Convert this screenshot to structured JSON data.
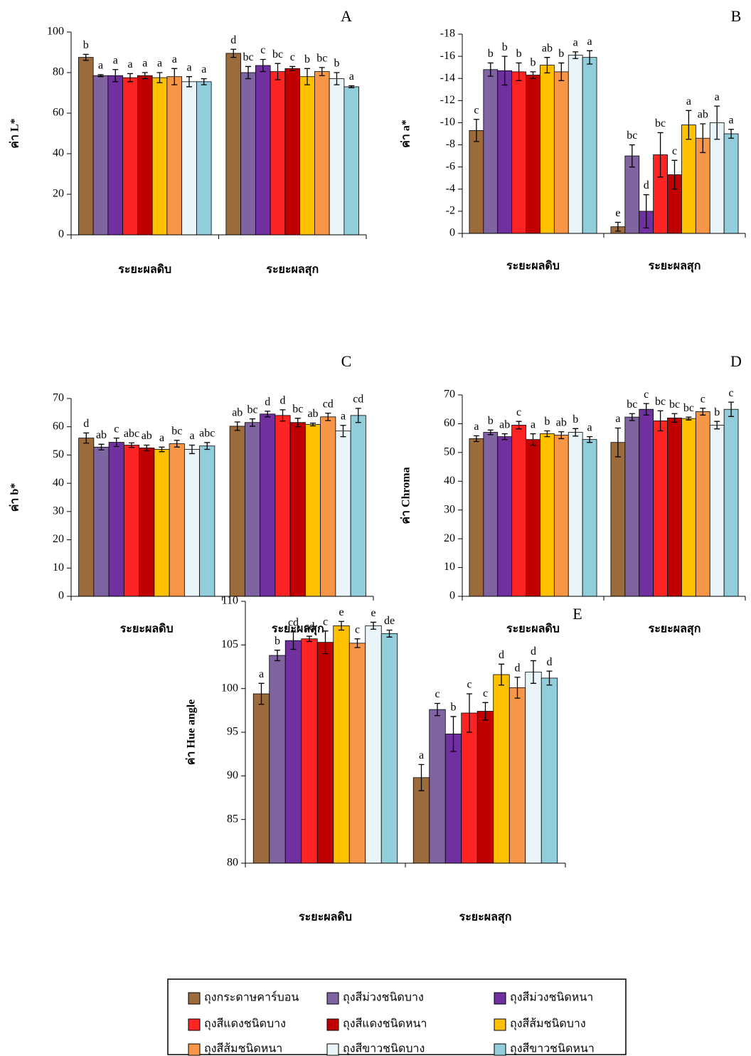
{
  "chart_data": [
    {
      "type": "bar",
      "panel": "A",
      "y_label": "ค่า L*",
      "categories": [
        "ระยะผลดิบ",
        "ระยะผลสุก"
      ],
      "ylim": [
        0,
        100
      ],
      "yticks": [
        0,
        20,
        40,
        60,
        80,
        100
      ],
      "series": [
        {
          "values": [
            87.5,
            89.5
          ],
          "errors": [
            1.5,
            2
          ],
          "letters": [
            "b",
            "d"
          ]
        },
        {
          "values": [
            78.5,
            80
          ],
          "errors": [
            0.5,
            3
          ],
          "letters": [
            "a",
            "bc"
          ]
        },
        {
          "values": [
            78.5,
            83.5
          ],
          "errors": [
            3,
            3
          ],
          "letters": [
            "a",
            "c"
          ]
        },
        {
          "values": [
            77.5,
            80.5
          ],
          "errors": [
            2,
            4
          ],
          "letters": [
            "a",
            "bc"
          ]
        },
        {
          "values": [
            78.5,
            82
          ],
          "errors": [
            1.5,
            1
          ],
          "letters": [
            "a",
            "c"
          ]
        },
        {
          "values": [
            77.5,
            78
          ],
          "errors": [
            2.5,
            4
          ],
          "letters": [
            "a",
            "b"
          ]
        },
        {
          "values": [
            78,
            80.5
          ],
          "errors": [
            4,
            2
          ],
          "letters": [
            "a",
            "bc"
          ]
        },
        {
          "values": [
            75.5,
            77
          ],
          "errors": [
            2.5,
            3
          ],
          "letters": [
            "a",
            "b"
          ]
        },
        {
          "values": [
            75.5,
            73
          ],
          "errors": [
            1.5,
            0.5
          ],
          "letters": [
            "a",
            "a"
          ]
        }
      ]
    },
    {
      "type": "bar",
      "panel": "B",
      "y_label": "ค่า a*",
      "categories": [
        "ระยะผลดิบ",
        "ระยะผลสุก"
      ],
      "ylim": [
        0,
        -18
      ],
      "yticks": [
        0,
        -2,
        -4,
        -6,
        -8,
        -10,
        -12,
        -14,
        -16,
        -18
      ],
      "series": [
        {
          "values": [
            -9.3,
            -0.6
          ],
          "errors": [
            1,
            0.4
          ],
          "letters": [
            "c",
            "e"
          ]
        },
        {
          "values": [
            -14.8,
            -7
          ],
          "errors": [
            0.6,
            1
          ],
          "letters": [
            "b",
            "bc"
          ]
        },
        {
          "values": [
            -14.7,
            -2
          ],
          "errors": [
            1.3,
            1.5
          ],
          "letters": [
            "b",
            "d"
          ]
        },
        {
          "values": [
            -14.6,
            -7.1
          ],
          "errors": [
            0.8,
            2
          ],
          "letters": [
            "b",
            "bc"
          ]
        },
        {
          "values": [
            -14.3,
            -5.3
          ],
          "errors": [
            0.3,
            1.3
          ],
          "letters": [
            "b",
            "c"
          ]
        },
        {
          "values": [
            -15.2,
            -9.8
          ],
          "errors": [
            0.7,
            1.3
          ],
          "letters": [
            "ab",
            "a"
          ]
        },
        {
          "values": [
            -14.6,
            -8.6
          ],
          "errors": [
            0.8,
            1.3
          ],
          "letters": [
            "b",
            "ab"
          ]
        },
        {
          "values": [
            -16.1,
            -10
          ],
          "errors": [
            0.3,
            1.5
          ],
          "letters": [
            "a",
            "a"
          ]
        },
        {
          "values": [
            -15.9,
            -9
          ],
          "errors": [
            0.6,
            0.4
          ],
          "letters": [
            "a",
            "a"
          ]
        }
      ]
    },
    {
      "type": "bar",
      "panel": "C",
      "y_label": "ค่า b*",
      "categories": [
        "ระยะผลดิบ",
        "ระยะผลสุก"
      ],
      "ylim": [
        0,
        70
      ],
      "yticks": [
        0,
        10,
        20,
        30,
        40,
        50,
        60,
        70
      ],
      "series": [
        {
          "values": [
            56,
            60.2
          ],
          "errors": [
            1.8,
            1.5
          ],
          "letters": [
            "d",
            "ab"
          ]
        },
        {
          "values": [
            52.8,
            61.5
          ],
          "errors": [
            1,
            1.3
          ],
          "letters": [
            "ab",
            "bc"
          ]
        },
        {
          "values": [
            54.5,
            64.5
          ],
          "errors": [
            1.5,
            1
          ],
          "letters": [
            "c",
            "d"
          ]
        },
        {
          "values": [
            53.5,
            64
          ],
          "errors": [
            0.8,
            2
          ],
          "letters": [
            "abc",
            "d"
          ]
        },
        {
          "values": [
            52.5,
            61.5
          ],
          "errors": [
            1,
            1.5
          ],
          "letters": [
            "ab",
            "bc"
          ]
        },
        {
          "values": [
            52,
            60.8
          ],
          "errors": [
            0.8,
            0.5
          ],
          "letters": [
            "a",
            "ab"
          ]
        },
        {
          "values": [
            54,
            63.5
          ],
          "errors": [
            1.2,
            1.3
          ],
          "letters": [
            "bc",
            "cd"
          ]
        },
        {
          "values": [
            52,
            58.5
          ],
          "errors": [
            1.5,
            2
          ],
          "letters": [
            "a",
            "a"
          ]
        },
        {
          "values": [
            53.2,
            64
          ],
          "errors": [
            1.2,
            2.5
          ],
          "letters": [
            "abc",
            "cd"
          ]
        }
      ]
    },
    {
      "type": "bar",
      "panel": "D",
      "y_label": "ค่า Chroma",
      "categories": [
        "ระยะผลดิบ",
        "ระยะผลสุก"
      ],
      "ylim": [
        0,
        70
      ],
      "yticks": [
        0,
        10,
        20,
        30,
        40,
        50,
        60,
        70
      ],
      "series": [
        {
          "values": [
            54.8,
            53.5
          ],
          "errors": [
            1,
            5
          ],
          "letters": [
            "a",
            "a"
          ]
        },
        {
          "values": [
            57,
            62.3
          ],
          "errors": [
            0.8,
            1.2
          ],
          "letters": [
            "b",
            "bc"
          ]
        },
        {
          "values": [
            55.5,
            65
          ],
          "errors": [
            1,
            2
          ],
          "letters": [
            "ab",
            "c"
          ]
        },
        {
          "values": [
            59.5,
            61
          ],
          "errors": [
            1.3,
            3.5
          ],
          "letters": [
            "c",
            "bc"
          ]
        },
        {
          "values": [
            54.5,
            62
          ],
          "errors": [
            2,
            1.5
          ],
          "letters": [
            "a",
            "bc"
          ]
        },
        {
          "values": [
            56.5,
            61.8
          ],
          "errors": [
            1,
            0.5
          ],
          "letters": [
            "b",
            "bc"
          ]
        },
        {
          "values": [
            56,
            64.2
          ],
          "errors": [
            1.2,
            1.2
          ],
          "letters": [
            "ab",
            "c"
          ]
        },
        {
          "values": [
            57,
            59.5
          ],
          "errors": [
            1.3,
            1.3
          ],
          "letters": [
            "b",
            "b"
          ]
        },
        {
          "values": [
            54.5,
            65
          ],
          "errors": [
            1,
            2.5
          ],
          "letters": [
            "a",
            "c"
          ]
        }
      ]
    },
    {
      "type": "bar",
      "panel": "E",
      "y_label": "ค่า Hue angle",
      "categories": [
        "ระยะผลดิบ",
        "ระยะผลสุก"
      ],
      "ylim": [
        80,
        110
      ],
      "yticks": [
        80,
        85,
        90,
        95,
        100,
        105,
        110
      ],
      "series": [
        {
          "values": [
            99.4,
            89.8
          ],
          "errors": [
            1.2,
            1.5
          ],
          "letters": [
            "a",
            "a"
          ]
        },
        {
          "values": [
            103.8,
            97.6
          ],
          "errors": [
            0.6,
            0.7
          ],
          "letters": [
            "b",
            "c"
          ]
        },
        {
          "values": [
            105.5,
            94.8
          ],
          "errors": [
            1,
            2
          ],
          "letters": [
            "cd",
            "b"
          ]
        },
        {
          "values": [
            105.7,
            97.2
          ],
          "errors": [
            0.3,
            2.2
          ],
          "letters": [
            "cd",
            "c"
          ]
        },
        {
          "values": [
            105.3,
            97.4
          ],
          "errors": [
            1.3,
            1
          ],
          "letters": [
            "c",
            "c"
          ]
        },
        {
          "values": [
            107.2,
            101.6
          ],
          "errors": [
            0.5,
            1.2
          ],
          "letters": [
            "e",
            "d"
          ]
        },
        {
          "values": [
            105.2,
            100.1
          ],
          "errors": [
            0.5,
            1.2
          ],
          "letters": [
            "c",
            "d"
          ]
        },
        {
          "values": [
            107.2,
            101.9
          ],
          "errors": [
            0.4,
            1.3
          ],
          "letters": [
            "e",
            "d"
          ]
        },
        {
          "values": [
            106.3,
            101.2
          ],
          "errors": [
            0.4,
            0.8
          ],
          "letters": [
            "de",
            "d"
          ]
        }
      ]
    }
  ],
  "legend": [
    {
      "name": "ถุงกระดาษคาร์บอน",
      "color": "#9c6b3c"
    },
    {
      "name": "ถุงสีม่วงชนิดบาง",
      "color": "#8064a2"
    },
    {
      "name": "ถุงสีม่วงชนิดหนา",
      "color": "#7030a0"
    },
    {
      "name": "ถุงสีแดงชนิดบาง",
      "color": "#ff2424"
    },
    {
      "name": "ถุงสีแดงชนิดหนา",
      "color": "#c00000"
    },
    {
      "name": "ถุงสีส้มชนิดบาง",
      "color": "#ffc000"
    },
    {
      "name": "ถุงสีส้มชนิดหนา",
      "color": "#f79646"
    },
    {
      "name": "ถุงสีขาวชนิดบาง",
      "color": "#e9f5f9"
    },
    {
      "name": "ถุงสีขาวชนิดหนา",
      "color": "#92cddc"
    }
  ]
}
